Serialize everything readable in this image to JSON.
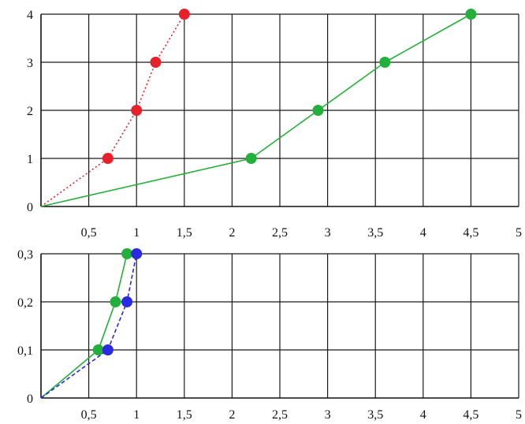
{
  "chart_data": [
    {
      "type": "line",
      "xlim": [
        0,
        5
      ],
      "ylim": [
        0,
        4
      ],
      "grid": true,
      "x_ticks": [
        "0,5",
        "1",
        "1,5",
        "2",
        "2,5",
        "3",
        "3,5",
        "4",
        "4,5",
        "5"
      ],
      "y_ticks": [
        "0",
        "1",
        "2",
        "3",
        "4"
      ],
      "series": [
        {
          "color": "#e8202a",
          "line_style": "dotted",
          "points": [
            [
              0,
              0
            ],
            [
              0.7,
              1
            ],
            [
              1.0,
              2
            ],
            [
              1.2,
              3
            ],
            [
              1.5,
              4
            ]
          ]
        },
        {
          "color": "#22b03a",
          "line_style": "solid",
          "points": [
            [
              0,
              0
            ],
            [
              2.2,
              1
            ],
            [
              2.9,
              2
            ],
            [
              3.6,
              3
            ],
            [
              4.5,
              4
            ]
          ]
        }
      ]
    },
    {
      "type": "line",
      "xlim": [
        0,
        5
      ],
      "ylim": [
        0,
        0.3
      ],
      "grid": true,
      "x_ticks": [
        "0,5",
        "1",
        "1,5",
        "2",
        "2,5",
        "3",
        "3,5",
        "4",
        "4,5",
        "5"
      ],
      "y_ticks": [
        "0",
        "0,1",
        "0,2",
        "0,3"
      ],
      "series": [
        {
          "color": "#22b03a",
          "line_style": "solid",
          "points": [
            [
              0,
              0
            ],
            [
              0.6,
              0.1
            ],
            [
              0.78,
              0.2
            ],
            [
              0.9,
              0.3
            ]
          ]
        },
        {
          "color": "#2a2ae0",
          "line_style": "dashed",
          "points": [
            [
              0,
              0
            ],
            [
              0.7,
              0.1
            ],
            [
              0.9,
              0.2
            ],
            [
              1.0,
              0.3
            ]
          ]
        }
      ]
    }
  ]
}
